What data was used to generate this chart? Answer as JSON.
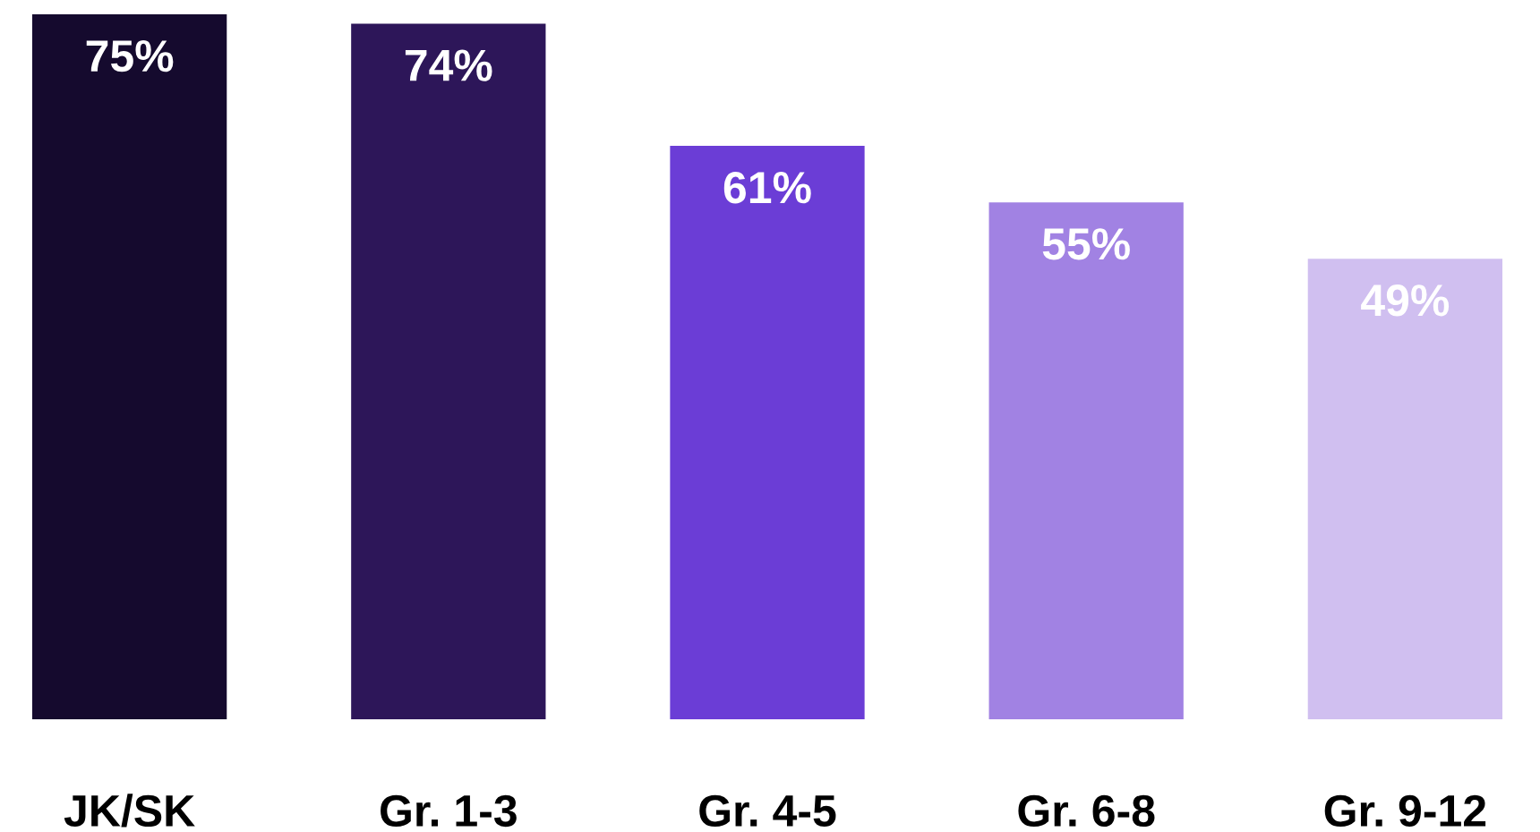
{
  "chart_data": {
    "type": "bar",
    "categories": [
      "JK/SK",
      "Gr. 1-3",
      "Gr. 4-5",
      "Gr. 6-8",
      "Gr. 9-12"
    ],
    "values": [
      75,
      74,
      61,
      55,
      49
    ],
    "value_labels": [
      "75%",
      "74%",
      "61%",
      "55%",
      "49%"
    ],
    "colors": [
      "#150a2e",
      "#2d1659",
      "#6b3dd6",
      "#a182e3",
      "#d0bff0"
    ],
    "ylim": [
      0,
      75
    ],
    "tick_labels": "x",
    "grid": false,
    "legend": false
  }
}
